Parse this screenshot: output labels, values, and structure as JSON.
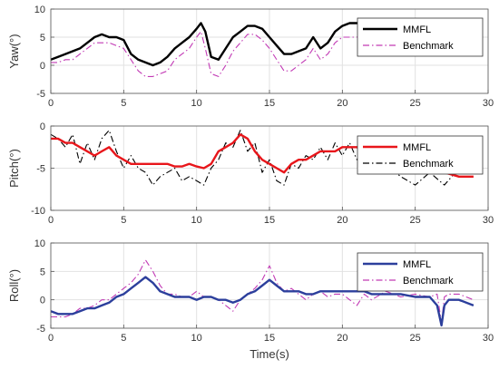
{
  "chart_data": [
    {
      "type": "line",
      "ylabel": "Yaw(°)",
      "xlabel": "",
      "xlim": [
        0,
        30
      ],
      "ylim": [
        -5,
        10
      ],
      "xticks": [
        0,
        5,
        10,
        15,
        20,
        25,
        30
      ],
      "yticks": [
        -5,
        0,
        5,
        10
      ],
      "grid": true,
      "legend_position": "top-right",
      "series": [
        {
          "name": "MMFL",
          "color": "#000000",
          "style": "solid",
          "x": [
            0,
            0.5,
            1,
            1.5,
            2,
            2.5,
            3,
            3.5,
            4,
            4.5,
            5,
            5.5,
            6,
            6.5,
            7,
            7.5,
            8,
            8.5,
            9,
            9.5,
            10,
            10.3,
            10.6,
            11,
            11.5,
            12,
            12.5,
            13,
            13.5,
            14,
            14.5,
            15,
            15.5,
            16,
            16.5,
            17,
            17.5,
            18,
            18.5,
            19,
            19.5,
            20,
            20.5,
            21,
            22,
            23,
            24,
            25,
            26,
            27,
            28,
            29
          ],
          "y": [
            1,
            1.5,
            2,
            2.5,
            3,
            4,
            5,
            5.5,
            5,
            5,
            4.5,
            2,
            1,
            0.5,
            0,
            0.5,
            1.5,
            3,
            4,
            5,
            6.5,
            7.5,
            6,
            1.5,
            1,
            3,
            5,
            6,
            7,
            7,
            6.5,
            5,
            3.5,
            2,
            2,
            2.5,
            3,
            5,
            3,
            4,
            6,
            7,
            7.5,
            7.5,
            8,
            7.5,
            8,
            7.5,
            8,
            7.5,
            7.5,
            7.5
          ]
        },
        {
          "name": "Benchmark",
          "color": "#c23ab5",
          "style": "dashdot",
          "x": [
            0,
            0.5,
            1,
            1.5,
            2,
            2.5,
            3,
            3.5,
            4,
            4.5,
            5,
            5.5,
            6,
            6.5,
            7,
            7.5,
            8,
            8.5,
            9,
            9.5,
            10,
            10.3,
            10.6,
            11,
            11.5,
            12,
            12.5,
            13,
            13.5,
            14,
            14.5,
            15,
            15.5,
            16,
            16.5,
            17,
            17.5,
            18,
            18.5,
            19,
            19.5,
            20,
            20.5,
            21,
            22,
            23,
            24,
            25,
            26,
            27,
            28,
            29
          ],
          "y": [
            0.5,
            0.5,
            1,
            1,
            2,
            3,
            4,
            4,
            4,
            3.5,
            3,
            1,
            -1,
            -2,
            -2,
            -1.5,
            -1,
            1,
            2,
            3,
            5,
            6,
            3,
            -1.5,
            -2,
            0,
            2.5,
            4,
            5.5,
            5.5,
            4.5,
            3,
            1,
            -1,
            -1,
            0,
            1,
            3,
            1,
            2,
            4,
            5,
            5,
            5,
            7,
            7,
            7.5,
            7,
            7,
            7,
            7,
            7
          ]
        }
      ]
    },
    {
      "type": "line",
      "ylabel": "Pitch(°)",
      "xlabel": "",
      "xlim": [
        0,
        30
      ],
      "ylim": [
        -10,
        0
      ],
      "xticks": [
        0,
        5,
        10,
        15,
        20,
        25,
        30
      ],
      "yticks": [
        -10,
        -5,
        0
      ],
      "grid": true,
      "legend_position": "top-right",
      "series": [
        {
          "name": "MMFL",
          "color": "#e8161b",
          "style": "solid",
          "x": [
            0,
            0.5,
            1,
            1.5,
            2,
            2.5,
            3,
            3.5,
            4,
            4.5,
            5,
            5.5,
            6,
            6.5,
            7,
            7.5,
            8,
            8.5,
            9,
            9.5,
            10,
            10.5,
            11,
            11.5,
            12,
            12.5,
            13,
            13.5,
            14,
            14.5,
            15,
            15.5,
            16,
            16.5,
            17,
            17.5,
            18,
            18.5,
            19,
            19.5,
            20,
            20.5,
            21,
            21.5,
            22,
            23,
            24,
            25,
            26,
            27,
            28,
            29
          ],
          "y": [
            -1.5,
            -1.5,
            -2,
            -2,
            -2.5,
            -3,
            -3.5,
            -3,
            -2.5,
            -3.5,
            -4,
            -4.5,
            -4.5,
            -4.5,
            -4.5,
            -4.5,
            -4.5,
            -4.8,
            -4.8,
            -4.5,
            -4.8,
            -5,
            -4.5,
            -3,
            -2.5,
            -2,
            -1,
            -1.5,
            -3,
            -4,
            -4.5,
            -5,
            -5.5,
            -4.5,
            -4,
            -4,
            -3.5,
            -3,
            -3,
            -3,
            -2.5,
            -2.5,
            -2.5,
            -3,
            -3,
            -3.5,
            -4.5,
            -5.5,
            -5,
            -5.5,
            -6,
            -6
          ]
        },
        {
          "name": "Benchmark",
          "color": "#000000",
          "style": "dashdot",
          "x": [
            0,
            0.5,
            1,
            1.5,
            2,
            2.5,
            3,
            3.5,
            4,
            4.5,
            5,
            5.5,
            6,
            6.5,
            7,
            7.5,
            8,
            8.5,
            9,
            9.5,
            10,
            10.5,
            11,
            11.5,
            12,
            12.5,
            13,
            13.5,
            14,
            14.5,
            15,
            15.5,
            16,
            16.5,
            17,
            17.5,
            18,
            18.5,
            19,
            19.5,
            20,
            20.5,
            21,
            21.5,
            22,
            23,
            24,
            25,
            26,
            27,
            28,
            29
          ],
          "y": [
            -1,
            -1.5,
            -2.5,
            -1,
            -4.5,
            -2,
            -4,
            -1.5,
            -0.5,
            -3,
            -5,
            -3.5,
            -5,
            -5.5,
            -7,
            -6,
            -5.5,
            -5,
            -6.5,
            -6,
            -6.5,
            -7,
            -5,
            -4,
            -2,
            -2.5,
            -0.5,
            -3,
            -2,
            -5.5,
            -4,
            -6.5,
            -7,
            -4.5,
            -5,
            -3.5,
            -4,
            -2.5,
            -4,
            -2,
            -3.5,
            -2,
            -4,
            -2.5,
            -4,
            -4.5,
            -6,
            -7,
            -5.5,
            -7,
            -5,
            -5.5
          ]
        }
      ]
    },
    {
      "type": "line",
      "ylabel": "Roll(°)",
      "xlabel": "Time(s)",
      "xlim": [
        0,
        30
      ],
      "ylim": [
        -5,
        10
      ],
      "xticks": [
        0,
        5,
        10,
        15,
        20,
        25,
        30
      ],
      "yticks": [
        -5,
        0,
        5,
        10
      ],
      "grid": true,
      "legend_position": "top-right",
      "series": [
        {
          "name": "MMFL",
          "color": "#2c3f9c",
          "style": "solid",
          "x": [
            0,
            0.5,
            1,
            1.5,
            2,
            2.5,
            3,
            3.5,
            4,
            4.5,
            5,
            5.5,
            6,
            6.5,
            7,
            7.5,
            8,
            8.5,
            9,
            9.5,
            10,
            10.5,
            11,
            11.5,
            12,
            12.5,
            13,
            13.5,
            14,
            14.5,
            15,
            15.5,
            16,
            16.5,
            17,
            17.5,
            18,
            18.5,
            19,
            19.5,
            20,
            20.5,
            21,
            21.5,
            22,
            23,
            24,
            25,
            26,
            26.5,
            26.8,
            27,
            27.3,
            28,
            29
          ],
          "y": [
            -2,
            -2.5,
            -2.5,
            -2.5,
            -2,
            -1.5,
            -1.5,
            -1,
            -0.5,
            0.5,
            1,
            2,
            3,
            4,
            3,
            1.5,
            1,
            0.5,
            0.5,
            0.5,
            0,
            0.5,
            0.5,
            0,
            0,
            -0.5,
            0,
            1,
            1.5,
            2.5,
            3.5,
            2.5,
            1.5,
            1.5,
            1.5,
            1,
            1,
            1.5,
            1.5,
            1.5,
            1.5,
            1.5,
            1.5,
            1.5,
            1,
            1,
            1,
            0.5,
            0.5,
            -1,
            -4.5,
            -1,
            0,
            0,
            -1
          ]
        },
        {
          "name": "Benchmark",
          "color": "#c23ab5",
          "style": "dashdot",
          "x": [
            0,
            0.5,
            1,
            1.5,
            2,
            2.5,
            3,
            3.5,
            4,
            4.5,
            5,
            5.5,
            6,
            6.5,
            7,
            7.5,
            8,
            8.5,
            9,
            9.5,
            10,
            10.5,
            11,
            11.5,
            12,
            12.5,
            13,
            13.5,
            14,
            14.5,
            15,
            15.5,
            16,
            16.5,
            17,
            17.5,
            18,
            18.5,
            19,
            19.5,
            20,
            20.5,
            21,
            21.5,
            22,
            23,
            24,
            25,
            26,
            26.5,
            26.8,
            27,
            27.3,
            28,
            29
          ],
          "y": [
            -3,
            -3,
            -3,
            -2.5,
            -1.5,
            -1.5,
            -1,
            0,
            0,
            1,
            2,
            3,
            4.5,
            7,
            5,
            2.5,
            1,
            1,
            0.5,
            0.5,
            1.5,
            0.5,
            0.5,
            0,
            -1,
            -2,
            0,
            1,
            2,
            3.5,
            6,
            3,
            1.5,
            2,
            1,
            0,
            1,
            1.5,
            0.5,
            1,
            1,
            0,
            -1,
            1,
            0,
            1.5,
            0.5,
            1,
            0.5,
            1,
            -4,
            0.5,
            1,
            1,
            0
          ]
        }
      ]
    }
  ]
}
